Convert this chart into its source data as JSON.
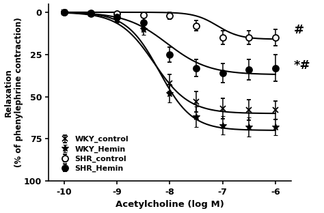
{
  "x_log": [
    -10,
    -9.5,
    -9,
    -8.5,
    -8,
    -7.5,
    -7,
    -6.5,
    -6
  ],
  "WKY_control_y": [
    0,
    -1,
    -3,
    -8,
    -42,
    -53,
    -57,
    -58,
    -58
  ],
  "WKY_control_yerr": [
    0.5,
    1.0,
    2.0,
    3.0,
    5.0,
    6.0,
    6.0,
    6.0,
    5.5
  ],
  "WKY_hemin_y": [
    0,
    -1,
    -4,
    -10,
    -48,
    -62,
    -67,
    -68,
    -68
  ],
  "WKY_hemin_yerr": [
    0.5,
    1.0,
    2.0,
    3.5,
    5.5,
    6.0,
    5.5,
    5.5,
    5.0
  ],
  "SHR_control_y": [
    0,
    -0.5,
    -1,
    -1.5,
    -2,
    -8,
    -15,
    -15,
    -15
  ],
  "SHR_control_yerr": [
    0.4,
    0.5,
    1.0,
    1.5,
    2.0,
    3.0,
    4.0,
    4.0,
    5.0
  ],
  "SHR_hemin_y": [
    0,
    -1,
    -3,
    -6,
    -25,
    -33,
    -36,
    -34,
    -33
  ],
  "SHR_hemin_yerr": [
    0.5,
    1.0,
    2.5,
    3.0,
    4.5,
    5.0,
    5.5,
    6.0,
    8.0
  ],
  "xlabel": "Acetylcholine (log M)",
  "ylabel": "Relaxation\n(% of phenylephrine contraction)",
  "xlim": [
    -10.3,
    -5.7
  ],
  "ylim": [
    -100,
    5
  ],
  "xticks": [
    -10,
    -9,
    -8,
    -7,
    -6
  ],
  "yticks": [
    0,
    25,
    50,
    75,
    100
  ],
  "background_color": "#ffffff",
  "line_color": "#000000",
  "annotation_hash": "#",
  "annotation_starhash": "*#",
  "WKY_control_ec50": -8.3,
  "WKY_control_max": -60,
  "WKY_control_hill": 1.3,
  "WKY_hemin_ec50": -8.2,
  "WKY_hemin_max": -70,
  "WKY_hemin_hill": 1.4,
  "SHR_control_ec50": -7.1,
  "SHR_control_max": -16,
  "SHR_control_hill": 2.0,
  "SHR_hemin_ec50": -8.05,
  "SHR_hemin_max": -37,
  "SHR_hemin_hill": 1.1
}
